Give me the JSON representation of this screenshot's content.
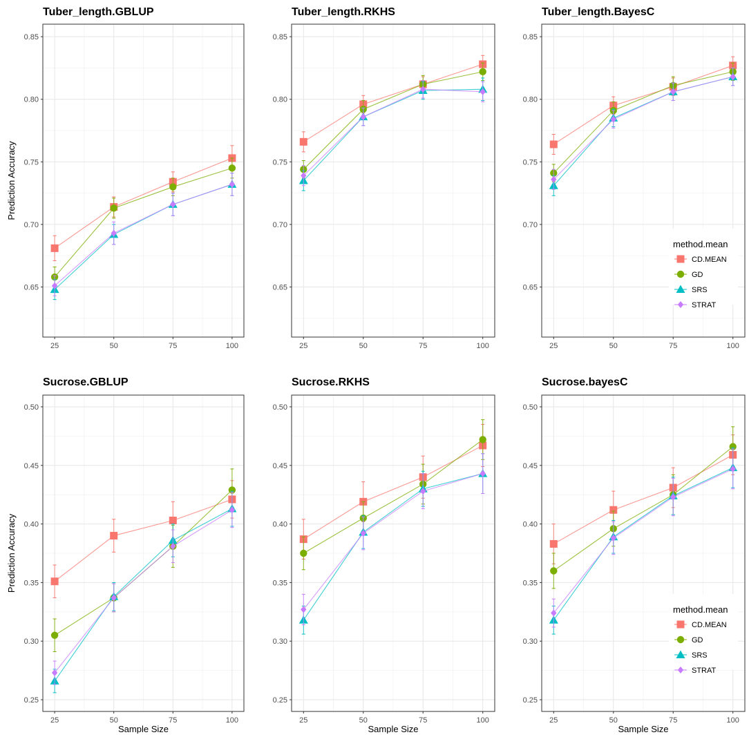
{
  "figure": {
    "x_axis_label": "Sample Size",
    "y_axis_label": "Prediction Accuracy"
  },
  "chart_data": [
    {
      "type": "line",
      "title": "Tuber_length.GBLUP",
      "xlabel": "",
      "ylabel": "Prediction Accuracy",
      "categories": [
        25,
        50,
        75,
        100
      ],
      "xlim": [
        20,
        105
      ],
      "ylim": [
        0.61,
        0.86
      ],
      "yticks": [
        0.65,
        0.7,
        0.75,
        0.8,
        0.85
      ],
      "ytick_labels": [
        "0.65",
        "0.70",
        "0.75",
        "0.80",
        "0.85"
      ],
      "series": [
        {
          "name": "CD.MEAN",
          "color": "#F8766D",
          "values": [
            0.681,
            0.714,
            0.734,
            0.753
          ],
          "err": [
            0.01,
            0.008,
            0.008,
            0.01
          ]
        },
        {
          "name": "GD",
          "color": "#7CAE00",
          "values": [
            0.658,
            0.713,
            0.73,
            0.745
          ],
          "err": [
            0.008,
            0.008,
            0.007,
            0.008
          ]
        },
        {
          "name": "SRS",
          "color": "#00BFC4",
          "values": [
            0.648,
            0.692,
            0.716,
            0.732
          ],
          "err": [
            0.008,
            0.008,
            0.009,
            0.009
          ]
        },
        {
          "name": "STRAT",
          "color": "#C77CFF",
          "values": [
            0.651,
            0.693,
            0.716,
            0.732
          ],
          "err": [
            0.008,
            0.009,
            0.009,
            0.009
          ]
        }
      ],
      "legend": null
    },
    {
      "type": "line",
      "title": "Tuber_length.RKHS",
      "xlabel": "",
      "ylabel": "",
      "categories": [
        25,
        50,
        75,
        100
      ],
      "xlim": [
        20,
        105
      ],
      "ylim": [
        0.61,
        0.86
      ],
      "yticks": [
        0.65,
        0.7,
        0.75,
        0.8,
        0.85
      ],
      "ytick_labels": [
        "0.65",
        "0.70",
        "0.75",
        "0.80",
        "0.85"
      ],
      "series": [
        {
          "name": "CD.MEAN",
          "color": "#F8766D",
          "values": [
            0.766,
            0.796,
            0.812,
            0.828
          ],
          "err": [
            0.008,
            0.007,
            0.006,
            0.007
          ]
        },
        {
          "name": "GD",
          "color": "#7CAE00",
          "values": [
            0.744,
            0.792,
            0.812,
            0.822
          ],
          "err": [
            0.007,
            0.007,
            0.007,
            0.007
          ]
        },
        {
          "name": "SRS",
          "color": "#00BFC4",
          "values": [
            0.735,
            0.786,
            0.807,
            0.808
          ],
          "err": [
            0.008,
            0.007,
            0.007,
            0.009
          ]
        },
        {
          "name": "STRAT",
          "color": "#C77CFF",
          "values": [
            0.739,
            0.786,
            0.808,
            0.806
          ],
          "err": [
            0.008,
            0.007,
            0.007,
            0.008
          ]
        }
      ],
      "legend": null
    },
    {
      "type": "line",
      "title": "Tuber_length.BayesC",
      "xlabel": "",
      "ylabel": "",
      "categories": [
        25,
        50,
        75,
        100
      ],
      "xlim": [
        20,
        105
      ],
      "ylim": [
        0.61,
        0.86
      ],
      "yticks": [
        0.65,
        0.7,
        0.75,
        0.8,
        0.85
      ],
      "ytick_labels": [
        "0.65",
        "0.70",
        "0.75",
        "0.80",
        "0.85"
      ],
      "series": [
        {
          "name": "CD.MEAN",
          "color": "#F8766D",
          "values": [
            0.764,
            0.795,
            0.81,
            0.827
          ],
          "err": [
            0.008,
            0.007,
            0.007,
            0.007
          ]
        },
        {
          "name": "GD",
          "color": "#7CAE00",
          "values": [
            0.741,
            0.791,
            0.811,
            0.822
          ],
          "err": [
            0.007,
            0.007,
            0.007,
            0.007
          ]
        },
        {
          "name": "SRS",
          "color": "#00BFC4",
          "values": [
            0.731,
            0.785,
            0.806,
            0.818
          ],
          "err": [
            0.008,
            0.007,
            0.007,
            0.007
          ]
        },
        {
          "name": "STRAT",
          "color": "#C77CFF",
          "values": [
            0.736,
            0.784,
            0.806,
            0.818
          ],
          "err": [
            0.008,
            0.007,
            0.007,
            0.007
          ]
        }
      ],
      "legend": {
        "title": "method.mean",
        "placement": "bottom-right inside",
        "entries": [
          "CD.MEAN",
          "GD",
          "SRS",
          "STRAT"
        ]
      }
    },
    {
      "type": "line",
      "title": "Sucrose.GBLUP",
      "xlabel": "Sample Size",
      "ylabel": "Prediction Accuracy",
      "categories": [
        25,
        50,
        75,
        100
      ],
      "xlim": [
        20,
        105
      ],
      "ylim": [
        0.24,
        0.51
      ],
      "yticks": [
        0.25,
        0.3,
        0.35,
        0.4,
        0.45,
        0.5
      ],
      "ytick_labels": [
        "0.25",
        "0.30",
        "0.35",
        "0.40",
        "0.45",
        "0.50"
      ],
      "series": [
        {
          "name": "CD.MEAN",
          "color": "#F8766D",
          "values": [
            0.351,
            0.39,
            0.403,
            0.421
          ],
          "err": [
            0.014,
            0.014,
            0.016,
            0.016
          ]
        },
        {
          "name": "GD",
          "color": "#7CAE00",
          "values": [
            0.305,
            0.337,
            0.381,
            0.429
          ],
          "err": [
            0.014,
            0.012,
            0.018,
            0.018
          ]
        },
        {
          "name": "SRS",
          "color": "#00BFC4",
          "values": [
            0.266,
            0.338,
            0.386,
            0.413
          ],
          "err": [
            0.01,
            0.012,
            0.014,
            0.015
          ]
        },
        {
          "name": "STRAT",
          "color": "#C77CFF",
          "values": [
            0.273,
            0.337,
            0.381,
            0.412
          ],
          "err": [
            0.01,
            0.012,
            0.014,
            0.015
          ]
        }
      ],
      "legend": null
    },
    {
      "type": "line",
      "title": "Sucrose.RKHS",
      "xlabel": "Sample Size",
      "ylabel": "",
      "categories": [
        25,
        50,
        75,
        100
      ],
      "xlim": [
        20,
        105
      ],
      "ylim": [
        0.24,
        0.51
      ],
      "yticks": [
        0.25,
        0.3,
        0.35,
        0.4,
        0.45,
        0.5
      ],
      "ytick_labels": [
        "0.25",
        "0.30",
        "0.35",
        "0.40",
        "0.45",
        "0.50"
      ],
      "series": [
        {
          "name": "CD.MEAN",
          "color": "#F8766D",
          "values": [
            0.387,
            0.419,
            0.44,
            0.467
          ],
          "err": [
            0.017,
            0.017,
            0.018,
            0.018
          ]
        },
        {
          "name": "GD",
          "color": "#7CAE00",
          "values": [
            0.375,
            0.405,
            0.434,
            0.472
          ],
          "err": [
            0.014,
            0.014,
            0.017,
            0.017
          ]
        },
        {
          "name": "SRS",
          "color": "#00BFC4",
          "values": [
            0.318,
            0.393,
            0.43,
            0.443
          ],
          "err": [
            0.012,
            0.014,
            0.015,
            0.017
          ]
        },
        {
          "name": "STRAT",
          "color": "#C77CFF",
          "values": [
            0.327,
            0.392,
            0.428,
            0.443
          ],
          "err": [
            0.013,
            0.014,
            0.015,
            0.017
          ]
        }
      ],
      "legend": null
    },
    {
      "type": "line",
      "title": "Sucrose.bayesC",
      "xlabel": "Sample Size",
      "ylabel": "",
      "categories": [
        25,
        50,
        75,
        100
      ],
      "xlim": [
        20,
        105
      ],
      "ylim": [
        0.24,
        0.51
      ],
      "yticks": [
        0.25,
        0.3,
        0.35,
        0.4,
        0.45,
        0.5
      ],
      "ytick_labels": [
        "0.25",
        "0.30",
        "0.35",
        "0.40",
        "0.45",
        "0.50"
      ],
      "series": [
        {
          "name": "CD.MEAN",
          "color": "#F8766D",
          "values": [
            0.383,
            0.412,
            0.431,
            0.459
          ],
          "err": [
            0.017,
            0.016,
            0.017,
            0.017
          ]
        },
        {
          "name": "GD",
          "color": "#7CAE00",
          "values": [
            0.36,
            0.396,
            0.425,
            0.466
          ],
          "err": [
            0.015,
            0.015,
            0.017,
            0.017
          ]
        },
        {
          "name": "SRS",
          "color": "#00BFC4",
          "values": [
            0.318,
            0.389,
            0.424,
            0.448
          ],
          "err": [
            0.012,
            0.014,
            0.016,
            0.017
          ]
        },
        {
          "name": "STRAT",
          "color": "#C77CFF",
          "values": [
            0.324,
            0.388,
            0.423,
            0.447
          ],
          "err": [
            0.012,
            0.014,
            0.016,
            0.017
          ]
        }
      ],
      "legend": {
        "title": "method.mean",
        "placement": "bottom-right inside",
        "entries": [
          "CD.MEAN",
          "GD",
          "SRS",
          "STRAT"
        ]
      }
    }
  ]
}
